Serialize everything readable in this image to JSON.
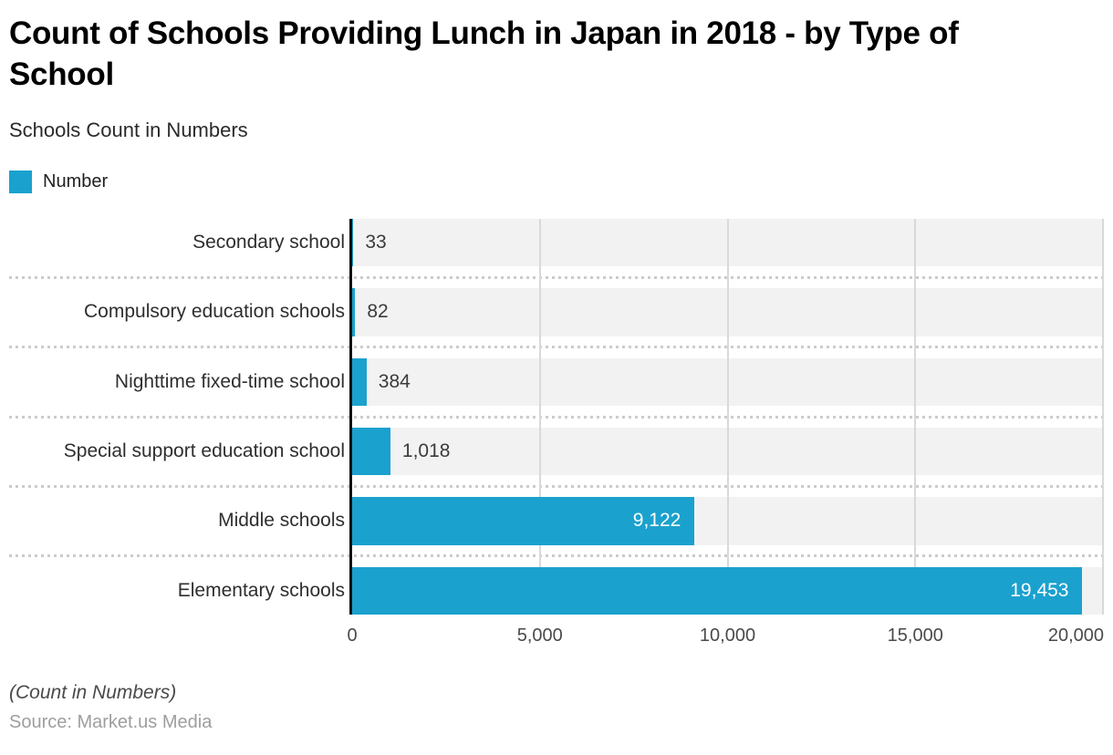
{
  "chart_data": {
    "type": "bar",
    "orientation": "horizontal",
    "title": "Count of Schools Providing Lunch in Japan in 2018 - by Type of School",
    "subtitle": "Schools Count in Numbers",
    "series_name": "Number",
    "categories": [
      "Secondary school",
      "Compulsory education schools",
      "Nighttime fixed-time school",
      "Special support education school",
      "Middle schools",
      "Elementary schools"
    ],
    "values": [
      33,
      82,
      384,
      1018,
      9122,
      19453
    ],
    "value_labels": [
      "33",
      "82",
      "384",
      "1,018",
      "9,122",
      "19,453"
    ],
    "xlim": [
      0,
      20000
    ],
    "x_ticks": [
      0,
      5000,
      10000,
      15000,
      20000
    ],
    "x_tick_labels": [
      "0",
      "5,000",
      "10,000",
      "15,000",
      "20,000"
    ],
    "grid": true,
    "legend_position": "top-left",
    "bar_color": "#1BA1CE",
    "row_band_color": "#F2F2F2"
  },
  "footer": {
    "note": "(Count in Numbers)",
    "source": "Source: Market.us Media"
  }
}
